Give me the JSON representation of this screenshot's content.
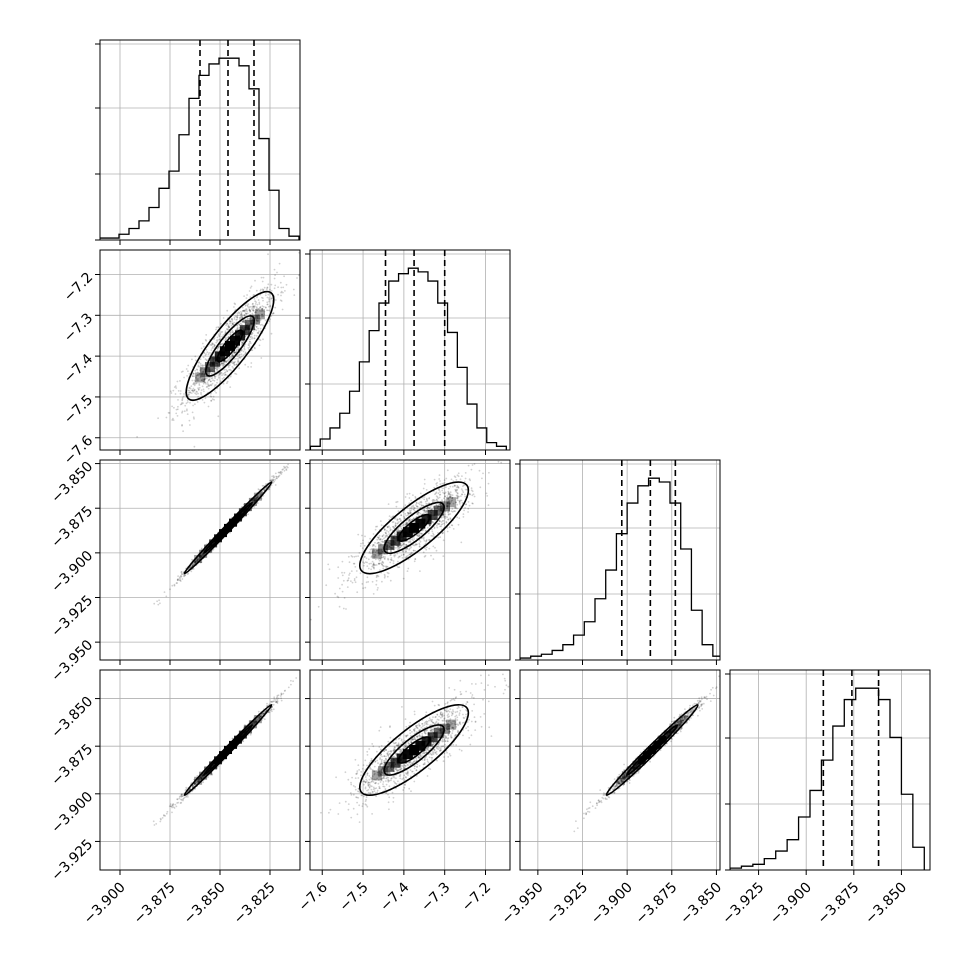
{
  "chart_data": {
    "type": "corner",
    "parameters": 4,
    "quantiles": [
      0.16,
      0.5,
      0.84
    ],
    "marginals": [
      {
        "param": 0,
        "xlim": [
          -3.91,
          -3.81
        ],
        "bin_centers": [
          -3.908,
          -3.903,
          -3.898,
          -3.893,
          -3.888,
          -3.883,
          -3.878,
          -3.873,
          -3.868,
          -3.863,
          -3.858,
          -3.853,
          -3.848,
          -3.843,
          -3.838,
          -3.833,
          -3.828,
          -3.823,
          -3.818,
          -3.813
        ],
        "counts": [
          1,
          1,
          3,
          6,
          10,
          17,
          27,
          36,
          55,
          74,
          86,
          92,
          95,
          95,
          91,
          79,
          53,
          26,
          6,
          2
        ],
        "quantile_values": [
          -3.86,
          -3.846,
          -3.833
        ]
      },
      {
        "param": 1,
        "xlim": [
          -7.63,
          -7.14
        ],
        "bin_centers": [
          -7.617,
          -7.593,
          -7.569,
          -7.545,
          -7.521,
          -7.497,
          -7.473,
          -7.449,
          -7.425,
          -7.401,
          -7.377,
          -7.353,
          -7.329,
          -7.305,
          -7.281,
          -7.257,
          -7.233,
          -7.209,
          -7.185,
          -7.161
        ],
        "counts": [
          2,
          6,
          12,
          20,
          32,
          48,
          65,
          80,
          92,
          96,
          99,
          97,
          92,
          80,
          64,
          45,
          25,
          12,
          4,
          2
        ],
        "quantile_values": [
          -7.445,
          -7.375,
          -7.3
        ]
      },
      {
        "param": 2,
        "xlim": [
          -3.96,
          -3.848
        ],
        "bin_centers": [
          -3.957,
          -3.951,
          -3.945,
          -3.939,
          -3.933,
          -3.927,
          -3.921,
          -3.915,
          -3.909,
          -3.903,
          -3.897,
          -3.891,
          -3.885,
          -3.879,
          -3.873,
          -3.867,
          -3.861,
          -3.855,
          -3.849
        ],
        "counts": [
          1,
          2,
          3,
          5,
          8,
          13,
          20,
          32,
          47,
          66,
          82,
          91,
          95,
          93,
          82,
          58,
          26,
          8,
          2
        ],
        "quantile_values": [
          -3.903,
          -3.887,
          -3.873
        ]
      },
      {
        "param": 3,
        "xlim": [
          -3.94,
          -3.835
        ],
        "bin_centers": [
          -3.937,
          -3.931,
          -3.925,
          -3.919,
          -3.913,
          -3.907,
          -3.901,
          -3.895,
          -3.889,
          -3.883,
          -3.877,
          -3.871,
          -3.865,
          -3.859,
          -3.853,
          -3.847,
          -3.841
        ],
        "counts": [
          1,
          2,
          3,
          6,
          10,
          16,
          28,
          42,
          58,
          76,
          90,
          96,
          96,
          90,
          70,
          40,
          12
        ],
        "quantile_values": [
          -3.891,
          -3.876,
          -3.862
        ]
      }
    ],
    "joint_panels": [
      {
        "x_param": 0,
        "y_param": 1,
        "cx": -3.845,
        "cy": -7.375,
        "sx": 0.0115,
        "sy": 0.07,
        "rho": 0.85
      },
      {
        "x_param": 0,
        "y_param": 2,
        "cx": -3.846,
        "cy": -3.886,
        "sx": 0.0115,
        "sy": 0.0135,
        "rho": 0.995
      },
      {
        "x_param": 1,
        "y_param": 2,
        "cx": -7.375,
        "cy": -3.886,
        "sx": 0.07,
        "sy": 0.0135,
        "rho": 0.82
      },
      {
        "x_param": 0,
        "y_param": 3,
        "cx": -3.846,
        "cy": -3.877,
        "sx": 0.0115,
        "sy": 0.0125,
        "rho": 0.995
      },
      {
        "x_param": 1,
        "y_param": 3,
        "cx": -7.375,
        "cy": -3.877,
        "sx": 0.07,
        "sy": 0.0125,
        "rho": 0.82
      },
      {
        "x_param": 2,
        "y_param": 3,
        "cx": -3.886,
        "cy": -3.877,
        "sx": 0.0135,
        "sy": 0.0125,
        "rho": 0.99
      }
    ],
    "axes": [
      {
        "param": 0,
        "lim": [
          -3.91,
          -3.81
        ],
        "ticks": [
          -3.9,
          -3.875,
          -3.85,
          -3.825
        ],
        "labels": [
          "−3.900",
          "−3.875",
          "−3.850",
          "−3.825"
        ]
      },
      {
        "param": 1,
        "lim": [
          -7.63,
          -7.14
        ],
        "ticks": [
          -7.6,
          -7.5,
          -7.4,
          -7.3,
          -7.2
        ],
        "labels": [
          "−7.6",
          "−7.5",
          "−7.4",
          "−7.3",
          "−7.2"
        ]
      },
      {
        "param": 2,
        "lim": [
          -3.96,
          -3.848
        ],
        "ticks": [
          -3.95,
          -3.925,
          -3.9,
          -3.875,
          -3.85
        ],
        "labels": [
          "−3.950",
          "−3.925",
          "−3.900",
          "−3.875",
          "−3.850"
        ]
      },
      {
        "param": 3,
        "lim": [
          -3.94,
          -3.835
        ],
        "ticks": [
          -3.925,
          -3.9,
          -3.875,
          -3.85
        ],
        "labels": [
          "−3.925",
          "−3.900",
          "−3.875",
          "−3.850"
        ]
      }
    ],
    "grid": true,
    "title": "",
    "xlabel": "",
    "ylabel": "",
    "colors": {
      "line": "#000000",
      "grid": "#b0b0b0",
      "density": "#000000",
      "background": "#ffffff"
    }
  }
}
